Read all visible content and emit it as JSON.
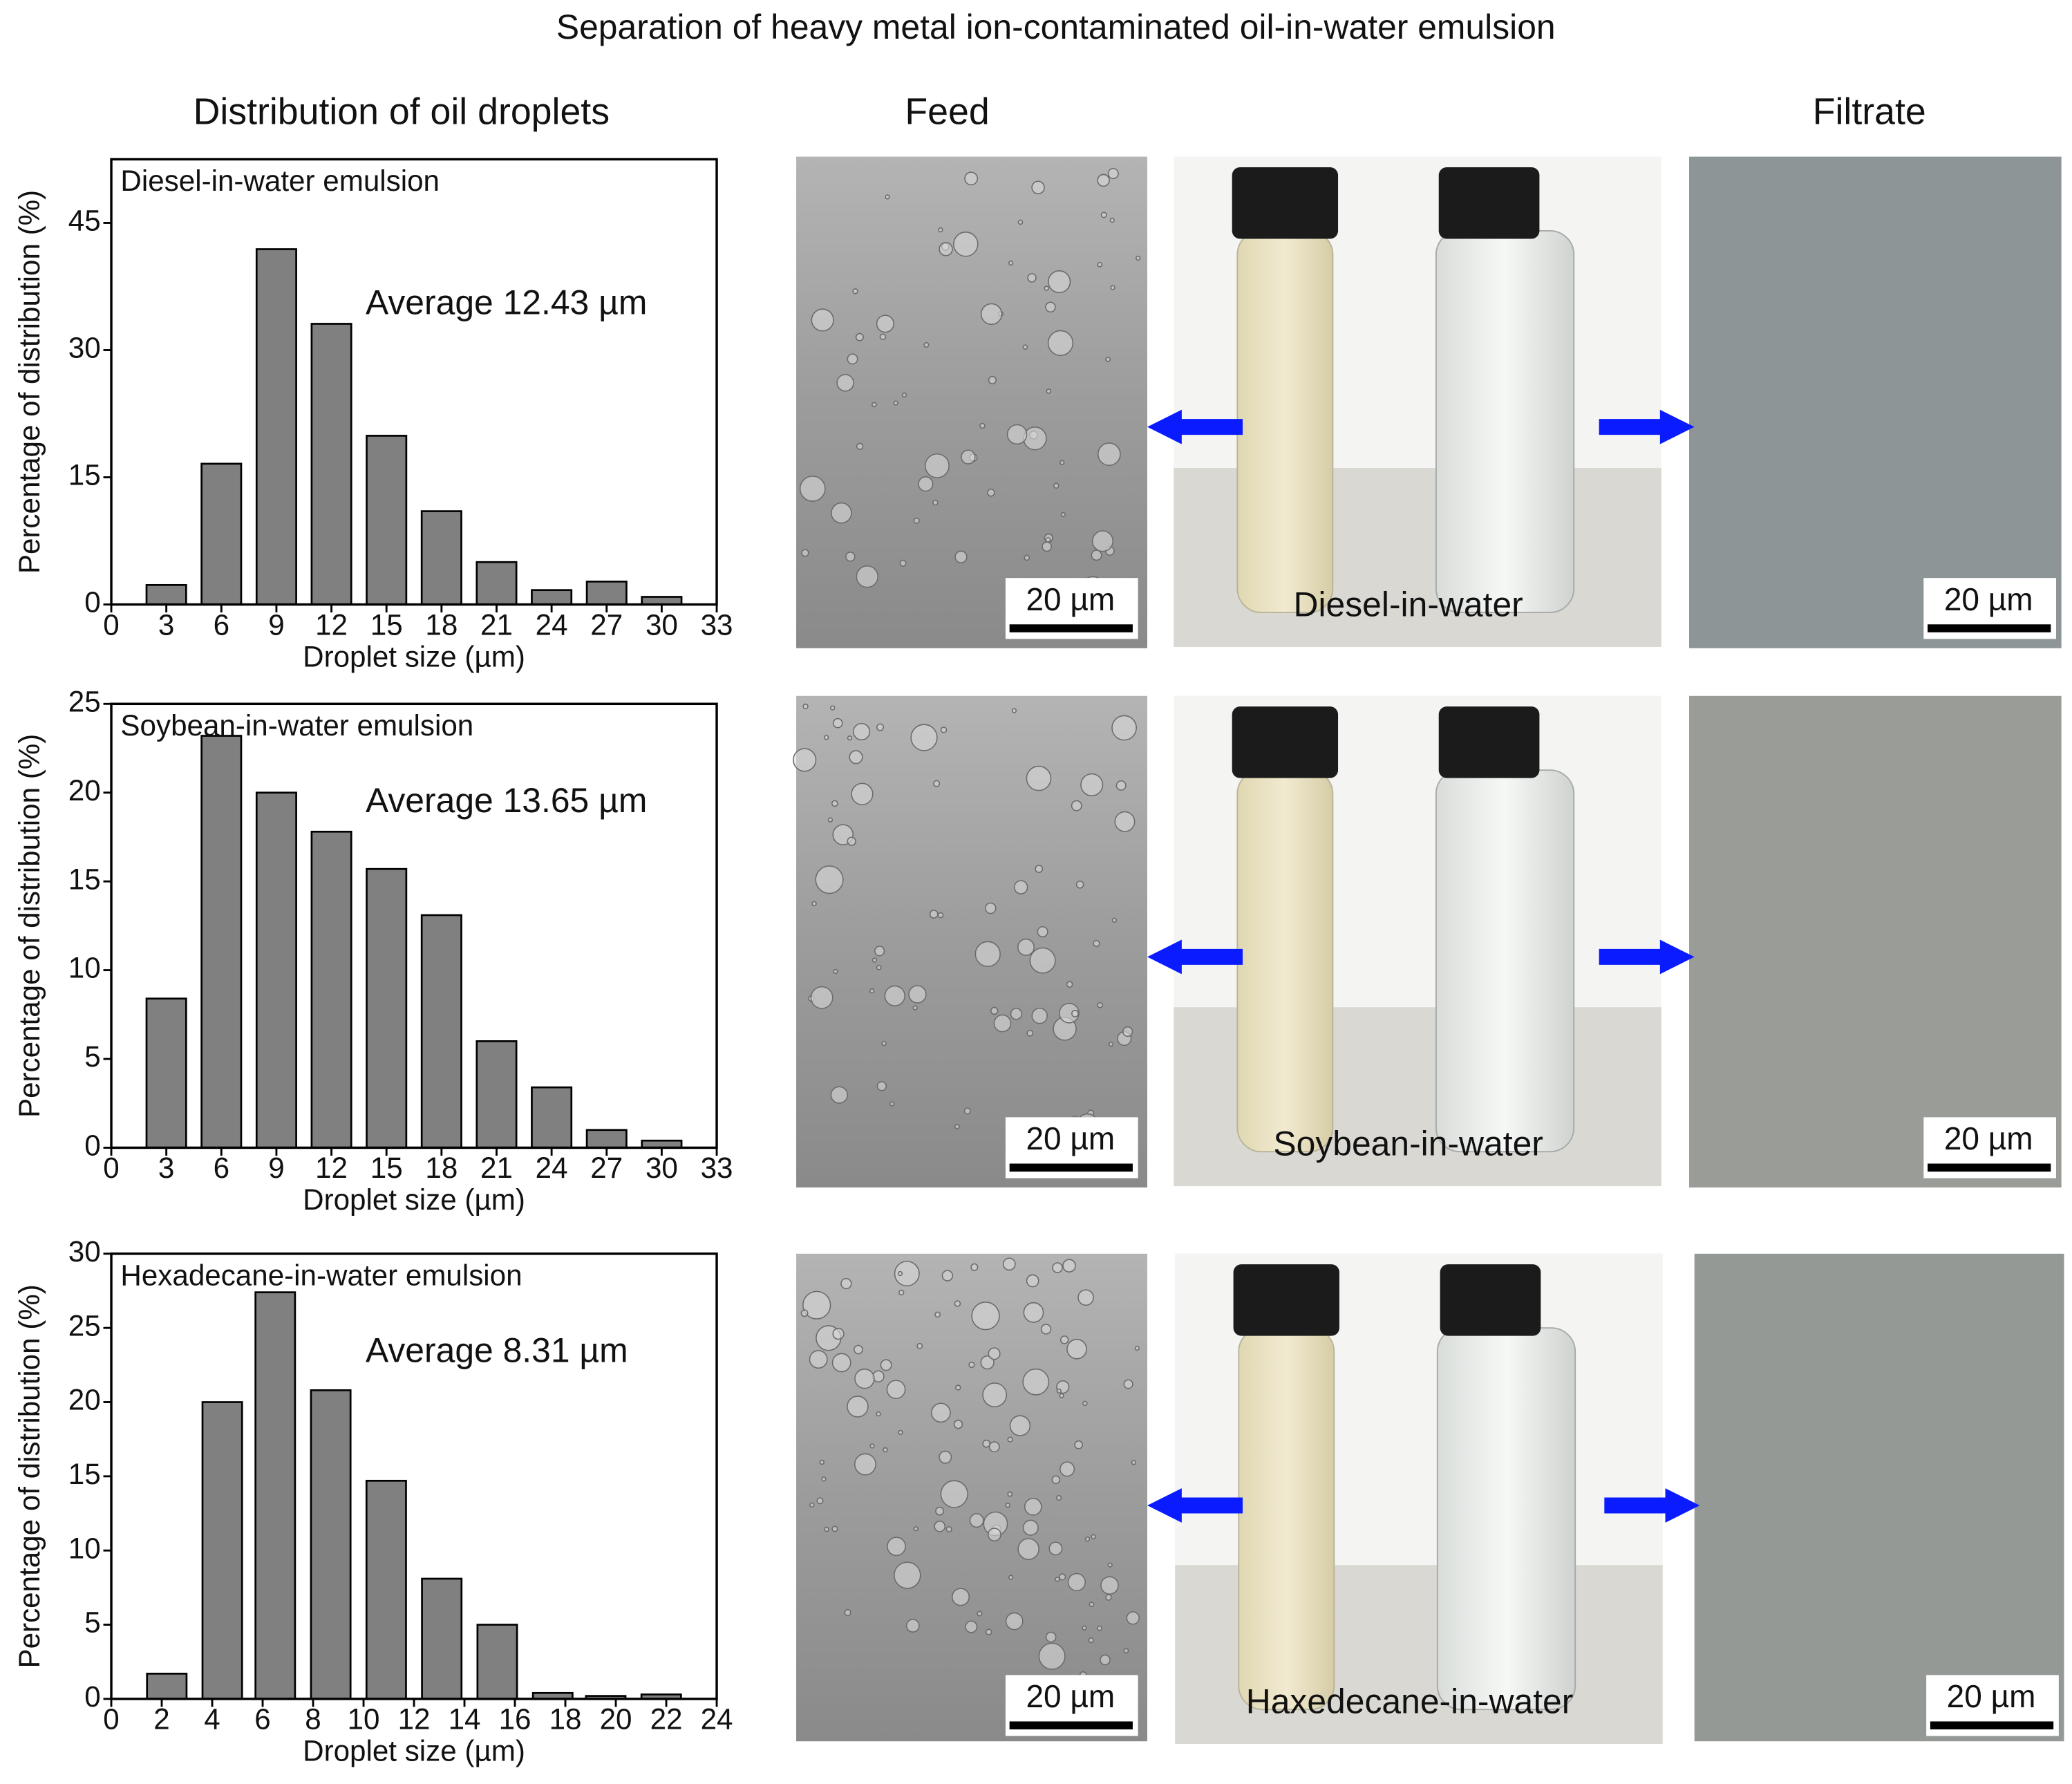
{
  "figure": {
    "title": "Separation of heavy metal ion-contaminated oil-in-water emulsion",
    "headers": [
      "Distribution of oil droplets",
      "Feed",
      "Filtrate"
    ],
    "rows": [
      {
        "sample": "Diesel-in-water",
        "scale_bars": [
          "20 µm",
          "20 µm"
        ]
      },
      {
        "sample": "Soybean-in-water",
        "scale_bars": [
          "20 µm",
          "20 µm"
        ]
      },
      {
        "sample": "Haxedecane-in-water",
        "scale_bars": [
          "20 µm",
          "20 µm"
        ]
      }
    ]
  },
  "chart_data": [
    {
      "type": "bar",
      "title": "Diesel-in-water emulsion",
      "annotation": "Average 12.43 µm",
      "x_label": "Droplet size (µm)",
      "y_label": "Percentage of distribution (%)",
      "x": [
        3,
        6,
        9,
        12,
        15,
        18,
        21,
        24,
        27,
        30
      ],
      "values": [
        2.3,
        16.6,
        41.9,
        33.1,
        19.9,
        11.0,
        5.0,
        1.7,
        2.7,
        0.9
      ],
      "color": "#808080",
      "xlim": [
        0,
        33
      ],
      "xticks": [
        0,
        3,
        6,
        9,
        12,
        15,
        18,
        21,
        24,
        27,
        30,
        33
      ],
      "ylim": [
        0,
        52.5
      ],
      "yticks": [
        0,
        15,
        30,
        45
      ]
    },
    {
      "type": "bar",
      "title": "Soybean-in-water emulsion",
      "annotation": "Average 13.65 µm",
      "x_label": "Droplet size (µm)",
      "y_label": "Percentage of distribution (%)",
      "x": [
        3,
        6,
        9,
        12,
        15,
        18,
        21,
        24,
        27,
        30
      ],
      "values": [
        8.4,
        23.2,
        20.0,
        17.8,
        15.7,
        13.1,
        6.0,
        3.4,
        1.0,
        0.4
      ],
      "color": "#808080",
      "xlim": [
        0,
        33
      ],
      "xticks": [
        0,
        3,
        6,
        9,
        12,
        15,
        18,
        21,
        24,
        27,
        30,
        33
      ],
      "ylim": [
        0,
        25
      ],
      "yticks": [
        0,
        5,
        10,
        15,
        20,
        25
      ]
    },
    {
      "type": "bar",
      "title": "Hexadecane-in-water emulsion",
      "annotation": "Average 8.31 µm",
      "x_label": "Droplet size (µm)",
      "y_label": "Percentage of distribution (%)",
      "x": [
        2.2,
        4.4,
        6.5,
        8.7,
        10.9,
        13.1,
        15.3,
        17.5,
        19.6,
        21.8
      ],
      "values": [
        1.7,
        20.0,
        27.4,
        20.8,
        14.7,
        8.1,
        5.0,
        0.4,
        0.2,
        0.3
      ],
      "color": "#808080",
      "xlim": [
        0,
        24
      ],
      "xticks": [
        0,
        2,
        4,
        6,
        8,
        10,
        12,
        14,
        16,
        18,
        20,
        22,
        24
      ],
      "ylim": [
        0,
        30
      ],
      "yticks": [
        0,
        5,
        10,
        15,
        20,
        25,
        30
      ]
    }
  ]
}
